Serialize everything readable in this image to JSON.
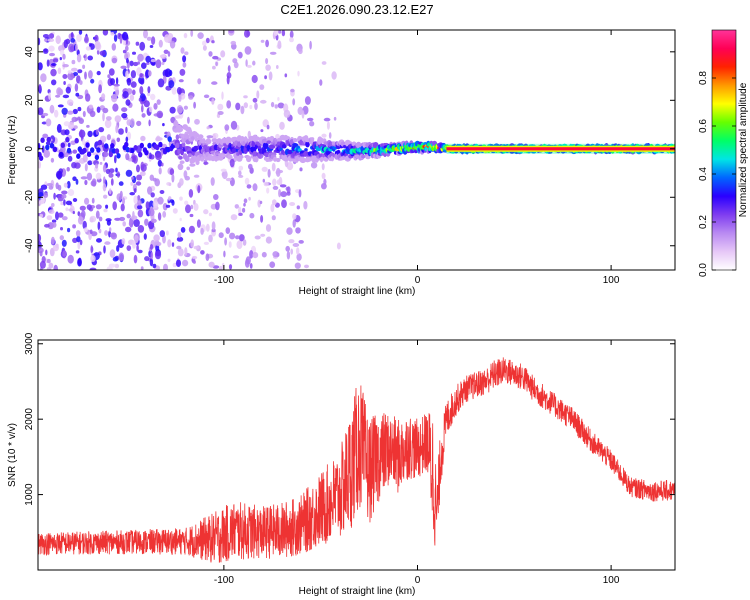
{
  "title": "C2E1.2026.090.23.12.E27",
  "chart_data": [
    {
      "type": "heatmap",
      "name": "spectrogram",
      "xlabel": "Height of straight line (km)",
      "ylabel": "Frequency (Hz)",
      "xlim": [
        -196,
        133
      ],
      "ylim": [
        -50,
        49
      ],
      "xticks": [
        -100,
        0,
        100
      ],
      "xtick_labels": [
        "-100",
        "0",
        "100"
      ],
      "yticks": [
        -40,
        -20,
        0,
        20,
        40
      ],
      "ytick_labels": [
        "-40",
        "-20",
        "0",
        "20",
        "40"
      ],
      "colorbar": {
        "label": "Normalized spectral amplitude",
        "range": [
          0,
          1
        ],
        "ticks": [
          0.0,
          0.2,
          0.4,
          0.6,
          0.8
        ],
        "tick_labels": [
          "0.0",
          "0.2",
          "0.4",
          "0.6",
          "0.8"
        ],
        "colors": [
          "#ffffff",
          "#e6c7f7",
          "#b98af2",
          "#7f3df0",
          "#2a00ff",
          "#0066ff",
          "#00e5e5",
          "#00ff66",
          "#66ff00",
          "#ffff00",
          "#ff9900",
          "#ff2200",
          "#ff0055",
          "#ff3399"
        ]
      },
      "description_points": [
        {
          "x": -196,
          "band_center": 0,
          "band_halfwidth": 49,
          "amplitude": 0.2
        },
        {
          "x": -110,
          "band_center": 0,
          "band_halfwidth": 4,
          "amplitude": 0.3
        },
        {
          "x": -60,
          "band_center": 0,
          "band_halfwidth": 5,
          "amplitude": 0.45
        },
        {
          "x": -30,
          "band_center": -1,
          "band_halfwidth": 3,
          "amplitude": 0.5
        },
        {
          "x": -10,
          "band_center": 0,
          "band_halfwidth": 2,
          "amplitude": 0.75
        },
        {
          "x": 5,
          "band_center": 1,
          "band_halfwidth": 2,
          "amplitude": 0.85
        },
        {
          "x": 15,
          "band_center": 0,
          "band_halfwidth": 1,
          "amplitude": 0.95
        },
        {
          "x": 133,
          "band_center": 0,
          "band_halfwidth": 1,
          "amplitude": 0.95
        }
      ]
    },
    {
      "type": "line",
      "name": "snr",
      "xlabel": "Height of straight line (km)",
      "ylabel": "SNR (10 * v/v)",
      "xlim": [
        -196,
        133
      ],
      "ylim": [
        0,
        3050
      ],
      "xticks": [
        -100,
        0,
        100
      ],
      "xtick_labels": [
        "-100",
        "0",
        "100"
      ],
      "yticks": [
        1000,
        2000,
        3000
      ],
      "ytick_labels": [
        "1000",
        "2000",
        "3000"
      ],
      "color": "#ee3333",
      "series": [
        {
          "name": "SNR",
          "x": [
            -196,
            -150,
            -120,
            -105,
            -95,
            -80,
            -70,
            -60,
            -50,
            -40,
            -35,
            -30,
            -25,
            -20,
            -15,
            -10,
            -5,
            0,
            5,
            8,
            10,
            12,
            15,
            20,
            25,
            30,
            35,
            40,
            45,
            50,
            55,
            60,
            65,
            70,
            80,
            90,
            100,
            110,
            120,
            133
          ],
          "mean": [
            350,
            370,
            380,
            420,
            520,
            500,
            520,
            600,
            800,
            1000,
            1300,
            1700,
            1300,
            1500,
            1600,
            1500,
            1650,
            1600,
            1700,
            1300,
            700,
            1500,
            2000,
            2250,
            2400,
            2450,
            2500,
            2600,
            2650,
            2600,
            2550,
            2400,
            2300,
            2200,
            2000,
            1700,
            1450,
            1100,
            1050,
            1050
          ],
          "spread": [
            150,
            160,
            180,
            350,
            400,
            350,
            380,
            400,
            500,
            600,
            800,
            900,
            700,
            600,
            500,
            500,
            450,
            400,
            400,
            900,
            500,
            400,
            250,
            200,
            180,
            180,
            180,
            200,
            180,
            180,
            180,
            170,
            170,
            160,
            160,
            150,
            140,
            130,
            140,
            140
          ]
        }
      ]
    }
  ]
}
